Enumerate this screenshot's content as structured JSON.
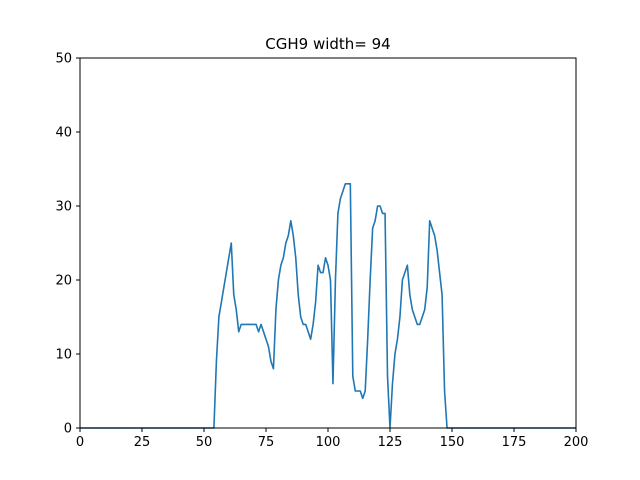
{
  "chart_data": {
    "type": "line",
    "title": "CGH9 width= 94",
    "xlabel": "",
    "ylabel": "",
    "xlim": [
      0,
      200
    ],
    "ylim": [
      0,
      50
    ],
    "xticks": [
      0,
      25,
      50,
      75,
      100,
      125,
      150,
      175,
      200
    ],
    "yticks": [
      0,
      10,
      20,
      30,
      40,
      50
    ],
    "grid": false,
    "series": [
      {
        "color": "#1f77b4",
        "points": [
          [
            0,
            0
          ],
          [
            54,
            0
          ],
          [
            55,
            9
          ],
          [
            56,
            15
          ],
          [
            57,
            17
          ],
          [
            58,
            19
          ],
          [
            59,
            21
          ],
          [
            60,
            23
          ],
          [
            61,
            25
          ],
          [
            62,
            18
          ],
          [
            63,
            16
          ],
          [
            64,
            13
          ],
          [
            65,
            14
          ],
          [
            66,
            14
          ],
          [
            67,
            14
          ],
          [
            68,
            14
          ],
          [
            69,
            14
          ],
          [
            70,
            14
          ],
          [
            71,
            14
          ],
          [
            72,
            13
          ],
          [
            73,
            14
          ],
          [
            74,
            13
          ],
          [
            75,
            12
          ],
          [
            76,
            11
          ],
          [
            77,
            9
          ],
          [
            78,
            8
          ],
          [
            79,
            16
          ],
          [
            80,
            20
          ],
          [
            81,
            22
          ],
          [
            82,
            23
          ],
          [
            83,
            25
          ],
          [
            84,
            26
          ],
          [
            85,
            28
          ],
          [
            86,
            26
          ],
          [
            87,
            23
          ],
          [
            88,
            18
          ],
          [
            89,
            15
          ],
          [
            90,
            14
          ],
          [
            91,
            14
          ],
          [
            92,
            13
          ],
          [
            93,
            12
          ],
          [
            94,
            14
          ],
          [
            95,
            17
          ],
          [
            96,
            22
          ],
          [
            97,
            21
          ],
          [
            98,
            21
          ],
          [
            99,
            23
          ],
          [
            100,
            22
          ],
          [
            101,
            20
          ],
          [
            102,
            6
          ],
          [
            103,
            20
          ],
          [
            104,
            29
          ],
          [
            105,
            31
          ],
          [
            106,
            32
          ],
          [
            107,
            33
          ],
          [
            108,
            33
          ],
          [
            109,
            33
          ],
          [
            110,
            7
          ],
          [
            111,
            5
          ],
          [
            112,
            5
          ],
          [
            113,
            5
          ],
          [
            114,
            4
          ],
          [
            115,
            5
          ],
          [
            116,
            12
          ],
          [
            117,
            20
          ],
          [
            118,
            27
          ],
          [
            119,
            28
          ],
          [
            120,
            30
          ],
          [
            121,
            30
          ],
          [
            122,
            29
          ],
          [
            123,
            29
          ],
          [
            124,
            7
          ],
          [
            125,
            0
          ],
          [
            126,
            6
          ],
          [
            127,
            10
          ],
          [
            128,
            12
          ],
          [
            129,
            15
          ],
          [
            130,
            20
          ],
          [
            131,
            21
          ],
          [
            132,
            22
          ],
          [
            133,
            18
          ],
          [
            134,
            16
          ],
          [
            135,
            15
          ],
          [
            136,
            14
          ],
          [
            137,
            14
          ],
          [
            138,
            15
          ],
          [
            139,
            16
          ],
          [
            140,
            19
          ],
          [
            141,
            28
          ],
          [
            142,
            27
          ],
          [
            143,
            26
          ],
          [
            144,
            24
          ],
          [
            145,
            21
          ],
          [
            146,
            18
          ],
          [
            147,
            5
          ],
          [
            148,
            0
          ],
          [
            200,
            0
          ]
        ]
      }
    ]
  }
}
